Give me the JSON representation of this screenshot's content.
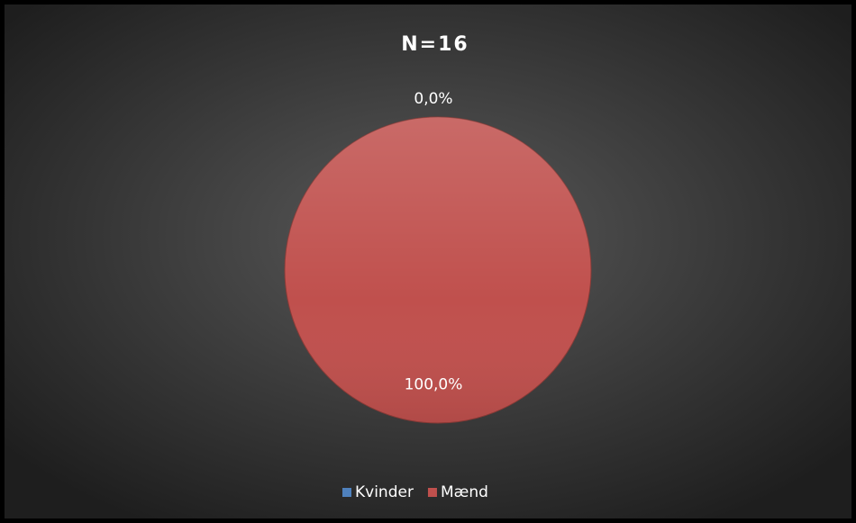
{
  "chart_data": {
    "type": "pie",
    "title": "N=16",
    "categories": [
      "Kvinder",
      "Mænd"
    ],
    "values": [
      0,
      100
    ],
    "value_labels": [
      "0,0%",
      "100,0%"
    ],
    "colors": [
      "#4f81bd",
      "#c0504d"
    ],
    "legend": "bottom"
  }
}
